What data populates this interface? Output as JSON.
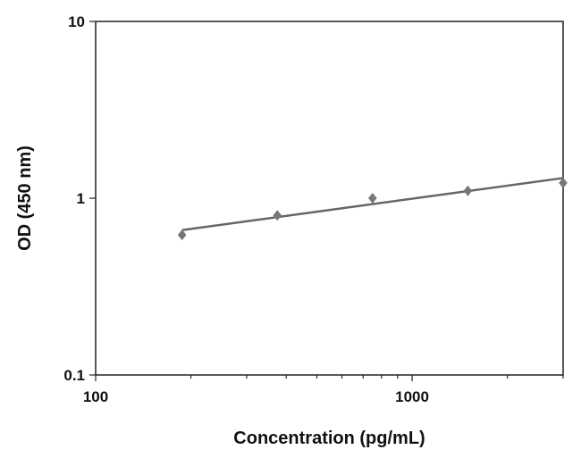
{
  "chart_data": {
    "type": "scatter",
    "title": "",
    "xlabel": "Concentration (pg/mL)",
    "ylabel": "OD (450 nm)",
    "x_scale": "log",
    "y_scale": "log",
    "xlim": [
      100,
      3000
    ],
    "ylim": [
      0.1,
      10
    ],
    "x_ticks": [
      100,
      1000
    ],
    "x_tick_labels": [
      "100",
      "1000"
    ],
    "y_ticks": [
      0.1,
      1,
      10
    ],
    "y_tick_labels": [
      "0.1",
      "1",
      "10"
    ],
    "grid": false,
    "legend": "none",
    "series": [
      {
        "points": [
          {
            "x": 187.5,
            "y": 0.62
          },
          {
            "x": 375,
            "y": 0.8
          },
          {
            "x": 750,
            "y": 1.0
          },
          {
            "x": 1500,
            "y": 1.1
          },
          {
            "x": 3000,
            "y": 1.22
          }
        ],
        "marker": "diamond",
        "color": "#777777"
      }
    ],
    "trendline": {
      "x_start": 187.5,
      "y_start": 0.66,
      "x_end": 3000,
      "y_end": 1.3,
      "color": "#666666"
    }
  }
}
